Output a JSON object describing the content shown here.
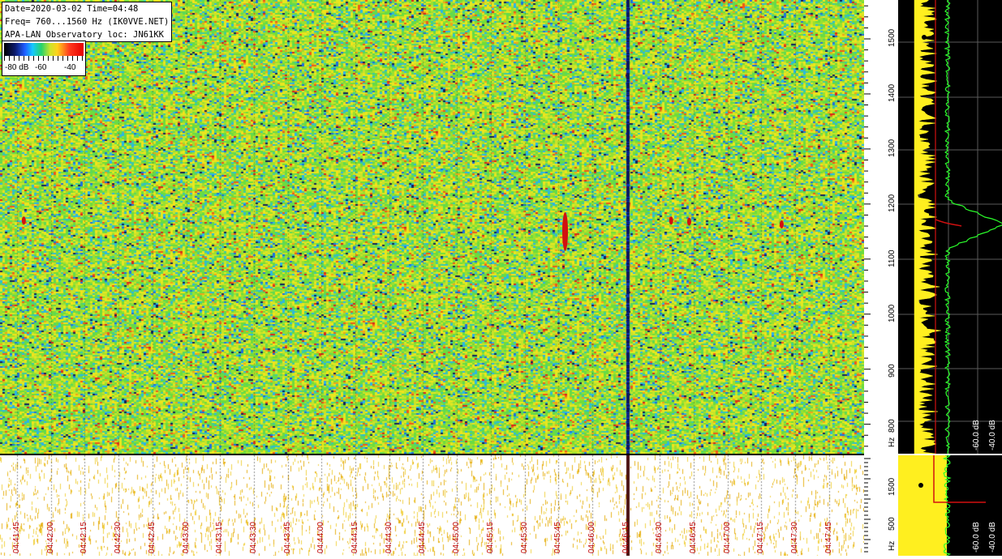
{
  "info": {
    "line1": "Date=2020-03-02 Time=04:48",
    "line2": "Freq= 760...1560 Hz (IK0VVE.NET)",
    "line3": "APA-LAN Observatory loc: JN61KK"
  },
  "legend": {
    "labels": [
      "-80 dB",
      "-60",
      "-40"
    ]
  },
  "colors": {
    "yellow": "#ffef1f",
    "green": "#2bff2b",
    "red": "#d21010",
    "label_red": "#c00000"
  },
  "chart_data": {
    "type": "heatmap",
    "title": "",
    "xlabel": "",
    "ylabel": "Hz",
    "freq_range_hz": [
      760,
      1560
    ],
    "time_ticks": [
      "04:41:45",
      "04:42:00",
      "04:42:15",
      "04:42:30",
      "04:42:45",
      "04:43:00",
      "04:43:15",
      "04:43:30",
      "04:43:45",
      "04:44:00",
      "04:44:15",
      "04:44:30",
      "04:44:45",
      "04:45:00",
      "04:45:15",
      "04:45:30",
      "04:45:45",
      "04:46:00",
      "04:46:15",
      "04:46:30",
      "04:46:45",
      "04:47:00",
      "04:47:15",
      "04:47:30",
      "04:47:45"
    ],
    "freq_ticks": [
      800,
      900,
      1000,
      1100,
      1200,
      1300,
      1400,
      1500
    ],
    "freq_ticks_lower": [
      500,
      1500
    ],
    "db_axis_labels": [
      "-60.0 dB",
      "-40.0 dB"
    ],
    "freq_unit": "Hz",
    "echoes": [
      {
        "time": "04:45:48",
        "freq_hz": 1150
      },
      {
        "time": "04:46:35",
        "freq_hz": 1170
      },
      {
        "time": "04:46:43",
        "freq_hz": 1168
      },
      {
        "time": "04:47:24",
        "freq_hz": 1163
      },
      {
        "time": "04:41:48",
        "freq_hz": 1170
      }
    ],
    "dark_vertical_line_time": "04:46:16",
    "carrier_freq_hz": 1163
  }
}
